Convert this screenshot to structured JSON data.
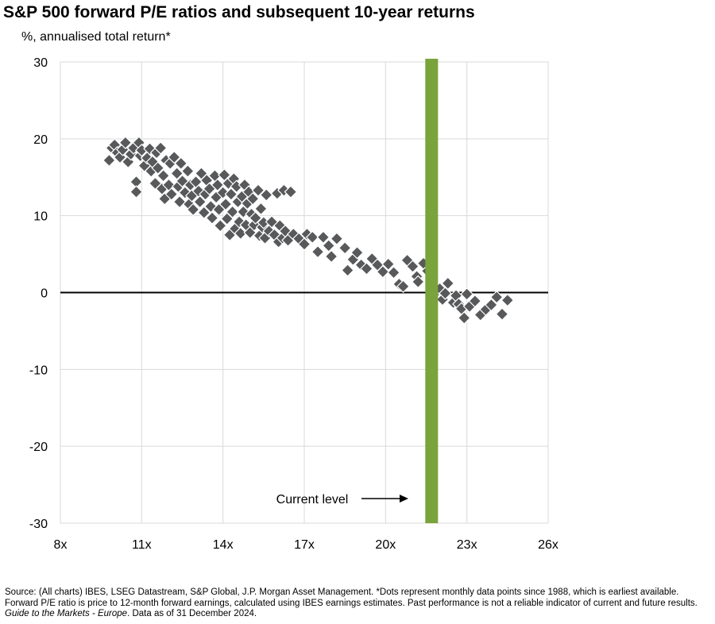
{
  "header": {
    "title": "S&P 500 forward P/E ratios and subsequent 10-year returns",
    "subtitle": "%, annualised total return*"
  },
  "chart_data": {
    "type": "scatter",
    "title": "S&P 500 forward P/E ratios and subsequent 10-year returns",
    "ylabel": "%, annualised total return*",
    "xlabel": "",
    "xlim": [
      8,
      26
    ],
    "ylim": [
      -30,
      30
    ],
    "x_ticks": [
      8,
      11,
      14,
      17,
      20,
      23,
      26
    ],
    "x_tick_labels": [
      "8x",
      "11x",
      "14x",
      "17x",
      "20x",
      "23x",
      "26x"
    ],
    "y_ticks": [
      -30,
      -20,
      -10,
      0,
      10,
      20,
      30
    ],
    "y_tick_labels": [
      "-30",
      "-20",
      "-10",
      "0",
      "10",
      "20",
      "30"
    ],
    "grid": true,
    "marker_color": "#58595b",
    "zero_line_color": "#000000",
    "current_level": {
      "x": 21.7,
      "label": "Current level",
      "color": "#7aa33b"
    },
    "points": [
      [
        9.8,
        17.2
      ],
      [
        9.9,
        18.8
      ],
      [
        10.0,
        19.2
      ],
      [
        10.1,
        18.2
      ],
      [
        10.2,
        17.6
      ],
      [
        10.3,
        18.6
      ],
      [
        10.4,
        19.5
      ],
      [
        10.5,
        17.0
      ],
      [
        10.6,
        18.0
      ],
      [
        10.7,
        18.8
      ],
      [
        10.8,
        14.4
      ],
      [
        10.8,
        13.1
      ],
      [
        10.9,
        19.5
      ],
      [
        10.95,
        17.8
      ],
      [
        11.0,
        18.5
      ],
      [
        11.1,
        16.5
      ],
      [
        11.2,
        17.5
      ],
      [
        11.3,
        18.7
      ],
      [
        11.35,
        15.8
      ],
      [
        11.4,
        17.0
      ],
      [
        11.5,
        14.2
      ],
      [
        11.55,
        18.2
      ],
      [
        11.6,
        16.2
      ],
      [
        11.7,
        18.8
      ],
      [
        11.75,
        13.5
      ],
      [
        11.8,
        15.2
      ],
      [
        11.85,
        12.2
      ],
      [
        11.9,
        17.2
      ],
      [
        12.0,
        14.0
      ],
      [
        12.05,
        16.8
      ],
      [
        12.1,
        12.8
      ],
      [
        12.2,
        17.6
      ],
      [
        12.3,
        15.5
      ],
      [
        12.35,
        13.8
      ],
      [
        12.4,
        11.8
      ],
      [
        12.45,
        16.8
      ],
      [
        12.5,
        14.5
      ],
      [
        12.6,
        13.0
      ],
      [
        12.7,
        15.8
      ],
      [
        12.75,
        11.5
      ],
      [
        12.8,
        14.0
      ],
      [
        12.85,
        12.6
      ],
      [
        12.9,
        10.8
      ],
      [
        13.0,
        14.4
      ],
      [
        13.1,
        13.2
      ],
      [
        13.15,
        11.8
      ],
      [
        13.2,
        15.5
      ],
      [
        13.3,
        10.4
      ],
      [
        13.35,
        12.8
      ],
      [
        13.4,
        14.6
      ],
      [
        13.5,
        13.5
      ],
      [
        13.55,
        11.2
      ],
      [
        13.6,
        9.7
      ],
      [
        13.7,
        15.2
      ],
      [
        13.75,
        12.4
      ],
      [
        13.8,
        14.0
      ],
      [
        13.85,
        10.8
      ],
      [
        13.9,
        8.7
      ],
      [
        14.0,
        13.0
      ],
      [
        14.05,
        15.3
      ],
      [
        14.1,
        11.5
      ],
      [
        14.15,
        9.6
      ],
      [
        14.2,
        14.2
      ],
      [
        14.25,
        7.5
      ],
      [
        14.3,
        12.8
      ],
      [
        14.35,
        10.5
      ],
      [
        14.4,
        14.8
      ],
      [
        14.45,
        8.3
      ],
      [
        14.5,
        13.8
      ],
      [
        14.55,
        11.8
      ],
      [
        14.6,
        9.2
      ],
      [
        14.65,
        7.7
      ],
      [
        14.7,
        12.5
      ],
      [
        14.75,
        10.5
      ],
      [
        14.8,
        14.0
      ],
      [
        14.85,
        8.8
      ],
      [
        14.9,
        11.6
      ],
      [
        14.95,
        13.1
      ],
      [
        15.0,
        7.8
      ],
      [
        15.05,
        10.2
      ],
      [
        15.1,
        12.2
      ],
      [
        15.15,
        8.8
      ],
      [
        15.2,
        9.7
      ],
      [
        15.3,
        13.3
      ],
      [
        15.35,
        7.4
      ],
      [
        15.4,
        10.9
      ],
      [
        15.45,
        8.5
      ],
      [
        15.5,
        9.1
      ],
      [
        15.55,
        7.1
      ],
      [
        15.6,
        12.7
      ],
      [
        15.7,
        8.0
      ],
      [
        15.8,
        9.2
      ],
      [
        15.9,
        7.5
      ],
      [
        16.0,
        12.9
      ],
      [
        16.05,
        6.6
      ],
      [
        16.1,
        8.7
      ],
      [
        16.2,
        7.1
      ],
      [
        16.25,
        13.3
      ],
      [
        16.3,
        8.0
      ],
      [
        16.4,
        6.8
      ],
      [
        16.5,
        13.1
      ],
      [
        16.6,
        7.6
      ],
      [
        16.8,
        7.0
      ],
      [
        17.0,
        6.3
      ],
      [
        17.1,
        7.6
      ],
      [
        17.3,
        7.2
      ],
      [
        17.5,
        5.3
      ],
      [
        17.7,
        7.2
      ],
      [
        17.9,
        6.1
      ],
      [
        18.0,
        4.7
      ],
      [
        18.2,
        7.0
      ],
      [
        18.5,
        5.8
      ],
      [
        18.6,
        2.9
      ],
      [
        18.8,
        4.3
      ],
      [
        18.95,
        5.2
      ],
      [
        19.1,
        3.6
      ],
      [
        19.3,
        3.1
      ],
      [
        19.5,
        4.4
      ],
      [
        19.7,
        3.6
      ],
      [
        19.9,
        2.7
      ],
      [
        20.1,
        3.7
      ],
      [
        20.3,
        2.6
      ],
      [
        20.5,
        1.1
      ],
      [
        20.65,
        0.8
      ],
      [
        20.8,
        4.2
      ],
      [
        21.0,
        3.4
      ],
      [
        21.15,
        2.1
      ],
      [
        21.2,
        1.4
      ],
      [
        21.4,
        3.8
      ],
      [
        21.55,
        2.8
      ],
      [
        21.7,
        -0.6
      ],
      [
        21.8,
        -0.2
      ],
      [
        22.0,
        0.5
      ],
      [
        22.1,
        -0.9
      ],
      [
        22.2,
        -0.1
      ],
      [
        22.3,
        1.2
      ],
      [
        22.5,
        -1.3
      ],
      [
        22.6,
        -0.4
      ],
      [
        22.7,
        -1.5
      ],
      [
        22.8,
        -2.1
      ],
      [
        22.9,
        -3.3
      ],
      [
        23.0,
        -0.2
      ],
      [
        23.1,
        -1.8
      ],
      [
        23.3,
        -1.1
      ],
      [
        23.5,
        -2.9
      ],
      [
        23.7,
        -2.2
      ],
      [
        23.9,
        -1.6
      ],
      [
        24.1,
        -0.6
      ],
      [
        24.3,
        -2.8
      ],
      [
        24.5,
        -1.0
      ]
    ]
  },
  "footnote": {
    "part1": "Source: (All charts) IBES, LSEG Datastream, S&P Global, J.P. Morgan Asset Management. *Dots represent monthly data points since 1988, which is earliest available. Forward P/E ratio is price to 12-month forward earnings, calculated using IBES earnings estimates. Past performance is not a reliable indicator of current and future results. ",
    "italic": "Guide to the Markets - Europe",
    "part2": ". Data as of 31 December 2024."
  }
}
